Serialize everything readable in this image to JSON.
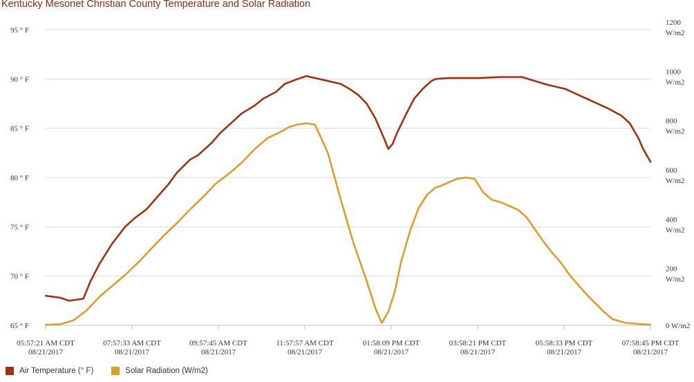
{
  "chart_data": {
    "type": "line",
    "title": "Kentucky Mesonet Christian County Temperature and Solar Radiation",
    "x_tick_labels": [
      {
        "time": "05:57:21 AM CDT",
        "date": "08/21/2017"
      },
      {
        "time": "07:57:33 AM CDT",
        "date": "08/21/2017"
      },
      {
        "time": "09:57:45 AM CDT",
        "date": "08/21/2017"
      },
      {
        "time": "11:57:57 AM CDT",
        "date": "08/21/2017"
      },
      {
        "time": "01:58:09 PM CDT",
        "date": "08/21/2017"
      },
      {
        "time": "03:58:21 PM CDT",
        "date": "08/21/2017"
      },
      {
        "time": "05:58:33 PM CDT",
        "date": "08/21/2017"
      },
      {
        "time": "07:58:45 PM CDT",
        "date": "08/21/2017"
      }
    ],
    "x_tick_hours": [
      5.956,
      7.959,
      9.963,
      11.966,
      13.969,
      15.973,
      17.976,
      19.979
    ],
    "xlim": [
      5.956,
      19.979
    ],
    "y_left": {
      "label": "° F",
      "unit": "° F",
      "ylim": [
        65,
        95
      ],
      "ticks": [
        65,
        70,
        75,
        80,
        85,
        90,
        95
      ],
      "tick_labels": [
        "65 ° F",
        "70 ° F",
        "75 ° F",
        "80 ° F",
        "85 ° F",
        "90 ° F",
        "95 ° F"
      ]
    },
    "y_right": {
      "unit": "W/m2",
      "ylim": [
        0,
        1200
      ],
      "ticks": [
        0,
        200,
        400,
        600,
        800,
        1000,
        1200
      ],
      "tick_labels": [
        "0 W/m2",
        "200 W/m2",
        "400 W/m2",
        "600 W/m2",
        "800 W/m2",
        "1000 W/m2",
        "1200 W/m2"
      ]
    },
    "grid": true,
    "legend_placement": "bottom-left",
    "series": [
      {
        "name": "Air Temperature (° F)",
        "axis": "left",
        "color": "#a0300e",
        "x": [
          5.96,
          6.3,
          6.5,
          6.83,
          7.0,
          7.2,
          7.5,
          7.8,
          8.0,
          8.3,
          8.5,
          8.8,
          9.0,
          9.3,
          9.5,
          9.8,
          10.0,
          10.3,
          10.5,
          10.8,
          11.0,
          11.3,
          11.5,
          11.8,
          12.0,
          12.3,
          12.5,
          12.8,
          13.0,
          13.2,
          13.4,
          13.6,
          13.8,
          13.9,
          14.0,
          14.1,
          14.3,
          14.5,
          14.7,
          14.9,
          15.0,
          15.3,
          15.6,
          16.0,
          16.5,
          17.0,
          17.3,
          17.6,
          18.0,
          18.3,
          18.6,
          19.0,
          19.3,
          19.5,
          19.7,
          19.8,
          19.9,
          19.98
        ],
        "values": [
          68.0,
          67.8,
          67.5,
          67.7,
          69.5,
          71.2,
          73.3,
          75.0,
          75.8,
          76.8,
          77.8,
          79.3,
          80.5,
          81.8,
          82.3,
          83.5,
          84.5,
          85.7,
          86.5,
          87.3,
          88.0,
          88.7,
          89.5,
          90.0,
          90.3,
          90.0,
          89.8,
          89.5,
          89.0,
          88.4,
          87.5,
          86.0,
          84.0,
          82.9,
          83.4,
          84.5,
          86.3,
          88.0,
          89.0,
          89.8,
          90.0,
          90.1,
          90.1,
          90.1,
          90.2,
          90.2,
          89.8,
          89.4,
          89.0,
          88.4,
          87.8,
          87.0,
          86.3,
          85.5,
          84.0,
          83.0,
          82.2,
          81.6
        ]
      },
      {
        "name": "Solar Radiation (W/m2)",
        "axis": "right",
        "color": "#e09c28",
        "x": [
          5.96,
          6.3,
          6.6,
          6.9,
          7.2,
          7.5,
          7.8,
          8.1,
          8.4,
          8.7,
          9.0,
          9.3,
          9.6,
          9.9,
          10.2,
          10.5,
          10.8,
          11.1,
          11.4,
          11.6,
          11.8,
          12.0,
          12.2,
          12.5,
          12.8,
          13.1,
          13.4,
          13.6,
          13.75,
          13.9,
          14.05,
          14.2,
          14.4,
          14.6,
          14.8,
          15.0,
          15.1,
          15.3,
          15.5,
          15.7,
          15.9,
          16.1,
          16.3,
          16.5,
          16.7,
          16.9,
          17.1,
          17.3,
          17.5,
          17.7,
          17.9,
          18.1,
          18.3,
          18.5,
          18.7,
          18.9,
          19.1,
          19.4,
          19.7,
          19.98
        ],
        "values": [
          2,
          5,
          20,
          60,
          115,
          160,
          205,
          255,
          310,
          365,
          415,
          470,
          520,
          575,
          615,
          660,
          715,
          760,
          785,
          805,
          815,
          820,
          815,
          700,
          510,
          330,
          180,
          70,
          10,
          55,
          135,
          260,
          380,
          475,
          530,
          560,
          565,
          580,
          595,
          600,
          595,
          540,
          510,
          500,
          485,
          470,
          440,
          390,
          340,
          295,
          255,
          205,
          165,
          125,
          90,
          55,
          25,
          10,
          6,
          3
        ]
      }
    ]
  },
  "legend": {
    "items": [
      {
        "label": "Air Temperature (° F)",
        "color": "#a0300e"
      },
      {
        "label": "Solar Radiation (W/m2)",
        "color": "#e09c28"
      }
    ]
  }
}
